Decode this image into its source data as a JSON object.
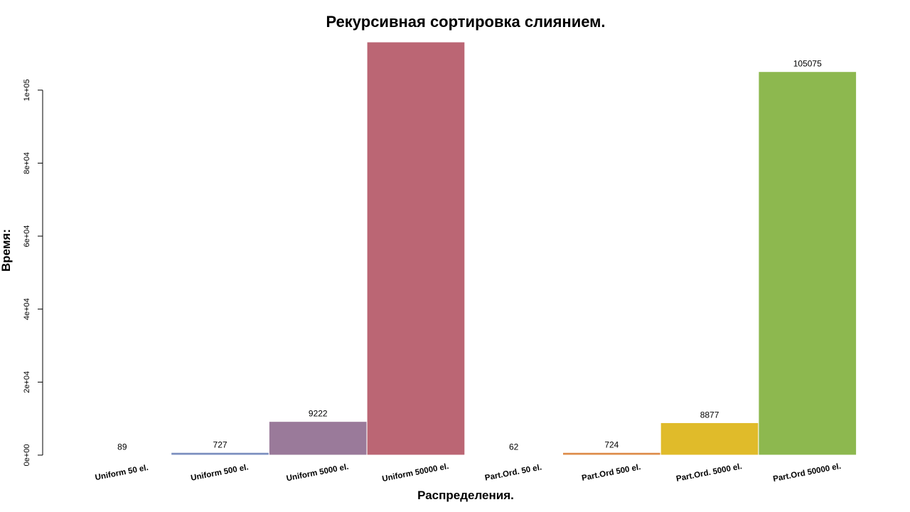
{
  "chart_data": {
    "type": "bar",
    "title": "Рекурсивная сортировка слиянием.",
    "xlabel": "Распределения.",
    "ylabel": "Время:",
    "categories": [
      "Uniform 50 el.",
      "Uniform 500 el.",
      "Uniform 5000 el.",
      "Uniform 50000 el.",
      "Part.Ord. 50 el.",
      "Part.Ord 500 el.",
      "Part.Ord. 5000 el.",
      "Part.Ord 50000 el."
    ],
    "values": [
      89,
      727,
      9222,
      113200,
      62,
      724,
      8877,
      105075
    ],
    "data_labels": [
      "89",
      "727",
      "9222",
      "",
      "62",
      "724",
      "8877",
      "105075"
    ],
    "colors": [
      "#5b9bd5",
      "#7b8fbf",
      "#9a7a9a",
      "#bb6674",
      "#c9c9c9",
      "#dd8c4a",
      "#e0bb2a",
      "#8db84f"
    ],
    "ylim": [
      0,
      113200
    ],
    "yticks": [
      0,
      20000,
      40000,
      60000,
      80000,
      100000
    ],
    "ytick_labels": [
      "0e+00",
      "2e+04",
      "4e+04",
      "6e+04",
      "8e+04",
      "1e+05"
    ],
    "grid": false,
    "legend": "none"
  }
}
